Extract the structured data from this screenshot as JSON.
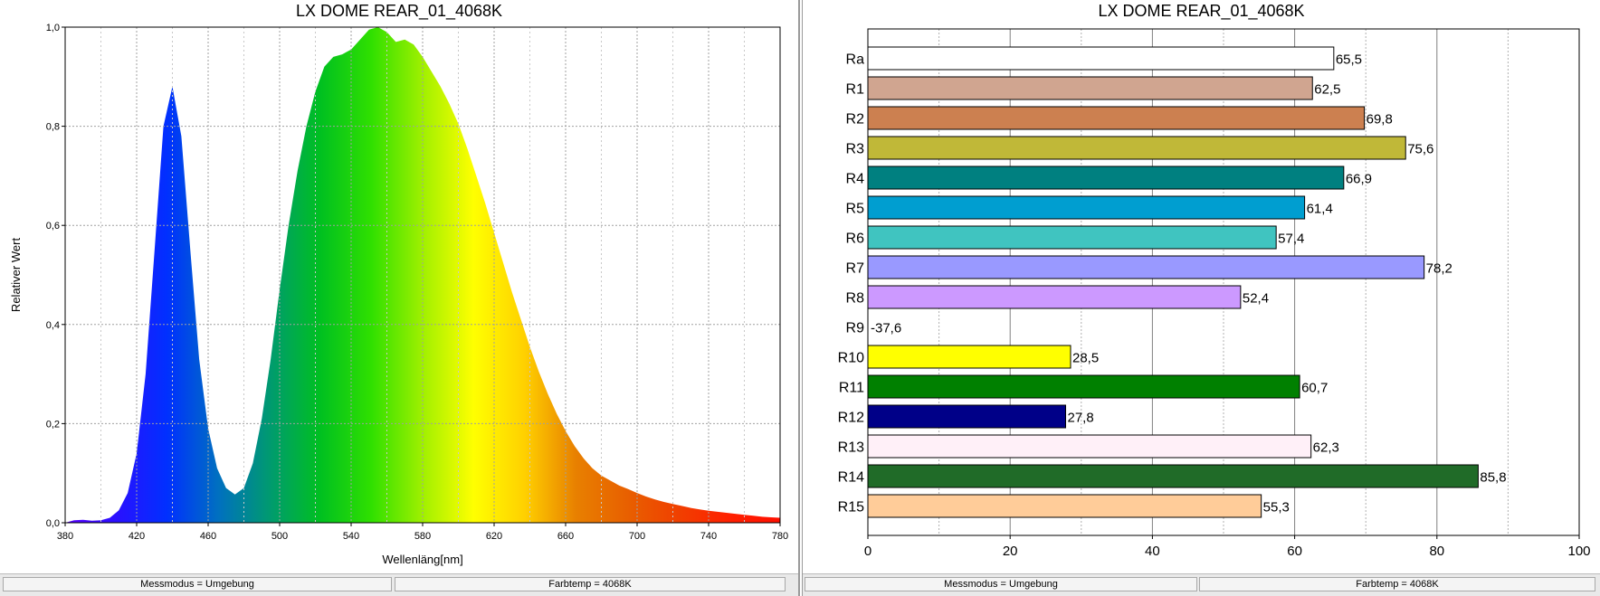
{
  "colors": {
    "spectrum_stops": [
      "#5a00ff",
      "#2a10ff",
      "#0030ff",
      "#0070c0",
      "#009a70",
      "#00c020",
      "#30e000",
      "#a0f000",
      "#ffff00",
      "#ffd000",
      "#e88000",
      "#e86000",
      "#f04000",
      "#ff2000",
      "#ff1000"
    ]
  },
  "chart_data": [
    {
      "type": "area",
      "title": "LX DOME REAR_01_4068K",
      "xlabel": "Wellenläng[nm]",
      "ylabel": "Relativer Wert",
      "xlim": [
        380,
        780
      ],
      "ylim": [
        0,
        1.0
      ],
      "xticks": [
        "380",
        "420",
        "460",
        "500",
        "540",
        "580",
        "620",
        "660",
        "700",
        "740",
        "780"
      ],
      "yticks": [
        "0,0",
        "0,2",
        "0,4",
        "0,6",
        "0,8",
        "1,0"
      ],
      "grid": true,
      "x": [
        380,
        385,
        390,
        395,
        400,
        405,
        410,
        415,
        420,
        425,
        430,
        435,
        440,
        445,
        450,
        455,
        460,
        465,
        470,
        475,
        480,
        485,
        490,
        495,
        500,
        505,
        510,
        515,
        520,
        525,
        530,
        535,
        540,
        545,
        550,
        555,
        560,
        565,
        570,
        575,
        580,
        585,
        590,
        595,
        600,
        605,
        610,
        615,
        620,
        625,
        630,
        635,
        640,
        645,
        650,
        655,
        660,
        665,
        670,
        675,
        680,
        685,
        690,
        695,
        700,
        705,
        710,
        715,
        720,
        725,
        730,
        735,
        740,
        745,
        750,
        755,
        760,
        765,
        770,
        775,
        780
      ],
      "y": [
        0.0,
        0.005,
        0.006,
        0.004,
        0.005,
        0.01,
        0.025,
        0.06,
        0.14,
        0.3,
        0.55,
        0.8,
        0.88,
        0.78,
        0.55,
        0.33,
        0.19,
        0.11,
        0.07,
        0.057,
        0.07,
        0.12,
        0.21,
        0.33,
        0.47,
        0.6,
        0.71,
        0.8,
        0.87,
        0.92,
        0.94,
        0.945,
        0.955,
        0.975,
        0.995,
        1.0,
        0.99,
        0.97,
        0.975,
        0.965,
        0.94,
        0.91,
        0.88,
        0.845,
        0.805,
        0.755,
        0.7,
        0.645,
        0.585,
        0.525,
        0.465,
        0.41,
        0.355,
        0.305,
        0.26,
        0.22,
        0.185,
        0.155,
        0.13,
        0.11,
        0.095,
        0.085,
        0.075,
        0.068,
        0.06,
        0.053,
        0.047,
        0.042,
        0.038,
        0.034,
        0.03,
        0.027,
        0.024,
        0.022,
        0.02,
        0.018,
        0.016,
        0.014,
        0.012,
        0.011,
        0.01
      ]
    },
    {
      "type": "bar",
      "orientation": "horizontal",
      "title": "LX DOME REAR_01_4068K",
      "xlim": [
        0,
        100
      ],
      "xticks": [
        "0",
        "20",
        "40",
        "60",
        "80",
        "100"
      ],
      "grid": true,
      "categories": [
        "Ra",
        "R1",
        "R2",
        "R3",
        "R4",
        "R5",
        "R6",
        "R7",
        "R8",
        "R9",
        "R10",
        "R11",
        "R12",
        "R13",
        "R14",
        "R15"
      ],
      "values": [
        65.5,
        62.5,
        69.8,
        75.6,
        66.9,
        61.4,
        57.4,
        78.2,
        52.4,
        -37.6,
        28.5,
        60.7,
        27.8,
        62.3,
        85.8,
        55.3
      ],
      "value_labels": [
        "65,5",
        "62,5",
        "69,8",
        "75,6",
        "66,9",
        "61,4",
        "57,4",
        "78,2",
        "52,4",
        "-37,6",
        "28,5",
        "60,7",
        "27,8",
        "62,3",
        "85,8",
        "55,3"
      ],
      "bar_colors": [
        "#ffffff",
        "#d0a590",
        "#cc8050",
        "#c0b838",
        "#008080",
        "#009ed0",
        "#40c4c0",
        "#9999ff",
        "#cc99ff",
        "#ff0000",
        "#ffff00",
        "#008000",
        "#000088",
        "#fff0f8",
        "#206b28",
        "#ffcc99"
      ]
    }
  ],
  "status_left": [
    "Messmodus = Umgebung",
    "Farbtemp = 4068K"
  ],
  "status_right": [
    "Messmodus = Umgebung",
    "Farbtemp = 4068K"
  ]
}
